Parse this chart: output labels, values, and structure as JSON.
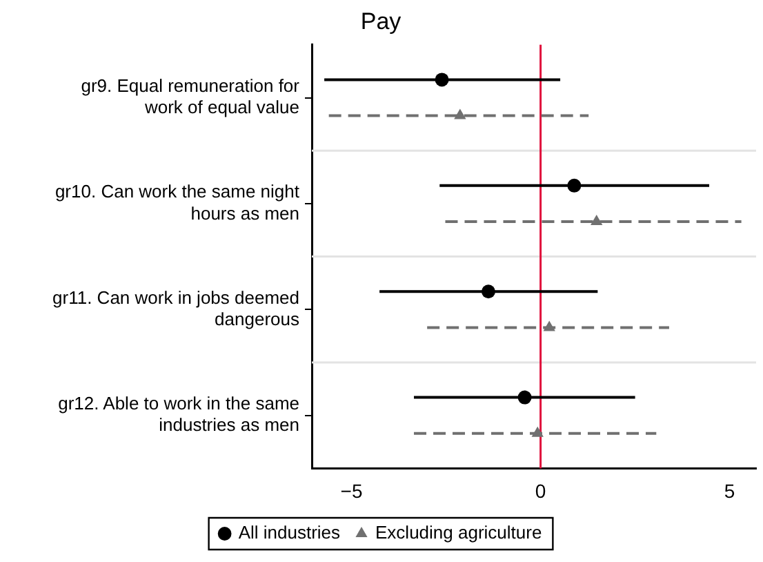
{
  "chart_data": {
    "type": "scatter",
    "title": "Pay",
    "orientation": "horizontal",
    "categories": [
      "gr9. Equal remuneration for work of equal value",
      "gr10. Can work the same night hours as men",
      "gr11. Can work in jobs deemed dangerous",
      "gr12. Able to work in the same industries as men"
    ],
    "series": [
      {
        "name": "All industries",
        "color": "#000000",
        "marker": "circle",
        "line_style": "solid",
        "values": [
          -2.61,
          0.89,
          -1.38,
          -0.42
        ],
        "errors": [
          [
            -5.72,
            0.52
          ],
          [
            -2.67,
            4.46
          ],
          [
            -4.26,
            1.51
          ],
          [
            -3.35,
            2.5
          ]
        ]
      },
      {
        "name": "Excluding agriculture",
        "color": "#707070",
        "marker": "triangle",
        "line_style": "dashed",
        "values": [
          -2.13,
          1.48,
          0.23,
          -0.08
        ],
        "errors": [
          [
            -5.6,
            1.27
          ],
          [
            -2.52,
            5.31
          ],
          [
            -3.0,
            3.4
          ],
          [
            -3.35,
            3.06
          ]
        ]
      }
    ],
    "xlim": [
      -6.05,
      5.7
    ],
    "xticks": [
      -5,
      0,
      5
    ],
    "ref_lines": [
      {
        "axis": "x",
        "value": 0,
        "color": "#e0103c"
      }
    ],
    "grid": "y",
    "legend": "bottom"
  }
}
